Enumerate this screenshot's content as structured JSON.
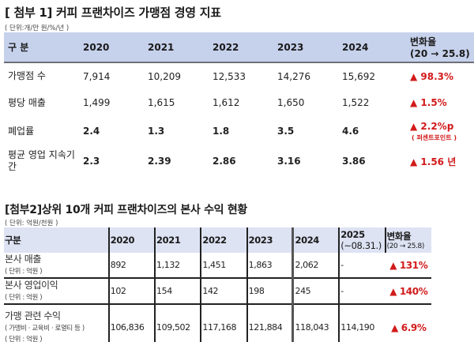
{
  "section1": {
    "title": "[ 첨부 1] 커피 프랜차이즈 가맹점 경영 지표",
    "unit": "( 단위:개/만 원/%/년 )",
    "header": {
      "label": "구 분",
      "years": [
        "2020",
        "2021",
        "2022",
        "2023",
        "2024"
      ],
      "change_line1": "변화율",
      "change_line2": "(20 → 25.8)"
    },
    "rows": [
      {
        "label": "가맹점 수",
        "values": [
          "7,914",
          "10,209",
          "12,533",
          "14,276",
          "15,692"
        ],
        "change": "▲ 98.3%",
        "change_note": ""
      },
      {
        "label": "평당 매출",
        "values": [
          "1,499",
          "1,615",
          "1,612",
          "1,650",
          "1,522"
        ],
        "change": "▲ 1.5%",
        "change_note": ""
      },
      {
        "label": "폐업률",
        "values": [
          "2.4",
          "1.3",
          "1.8",
          "3.5",
          "4.6"
        ],
        "change": "▲ 2.2%p",
        "change_note": "( 퍼센트포인트 )"
      },
      {
        "label": "평균 영업 지속기간",
        "values": [
          "2.3",
          "2.39",
          "2.86",
          "3.16",
          "3.86"
        ],
        "change": "▲ 1.56 년",
        "change_note": ""
      }
    ]
  },
  "section2": {
    "title": "[첨부2]상위 10개 커피 프랜차이즈의 본사 수익 현황",
    "unit": "( 단위: 억원/천원 )",
    "header": {
      "label": "구분",
      "years": [
        "2020",
        "2021",
        "2022",
        "2023",
        "2024"
      ],
      "year2025_line1": "2025",
      "year2025_line2": "(~08.31.)",
      "change_line1": "변화율",
      "change_line2": "(20 → 25.8)"
    },
    "rows": [
      {
        "label": "본사 매출",
        "sub1": "( 단위 : 억원 )",
        "sub2": "",
        "values": [
          "892",
          "1,132",
          "1,451",
          "1,863",
          "2,062",
          "-"
        ],
        "change": "▲ 131%"
      },
      {
        "label": "본사 영업이익",
        "sub1": "( 단위 : 억원 )",
        "sub2": "",
        "values": [
          "102",
          "154",
          "142",
          "198",
          "245",
          "-"
        ],
        "change": "▲ 140%"
      },
      {
        "label": "가맹 관련 수익",
        "sub1": "( 가맹비 · 교육비 · 로열티 등 )",
        "sub2": "( 단위 : 억원 )",
        "values": [
          "106,836",
          "109,502",
          "117,168",
          "121,884",
          "118,043",
          "114,190"
        ],
        "change": "▲ 6.9%"
      }
    ]
  },
  "colors": {
    "header1_bg": "#c6d1ec",
    "header2_bg": "#dde3f3",
    "increase_red": "#d21b1b"
  }
}
